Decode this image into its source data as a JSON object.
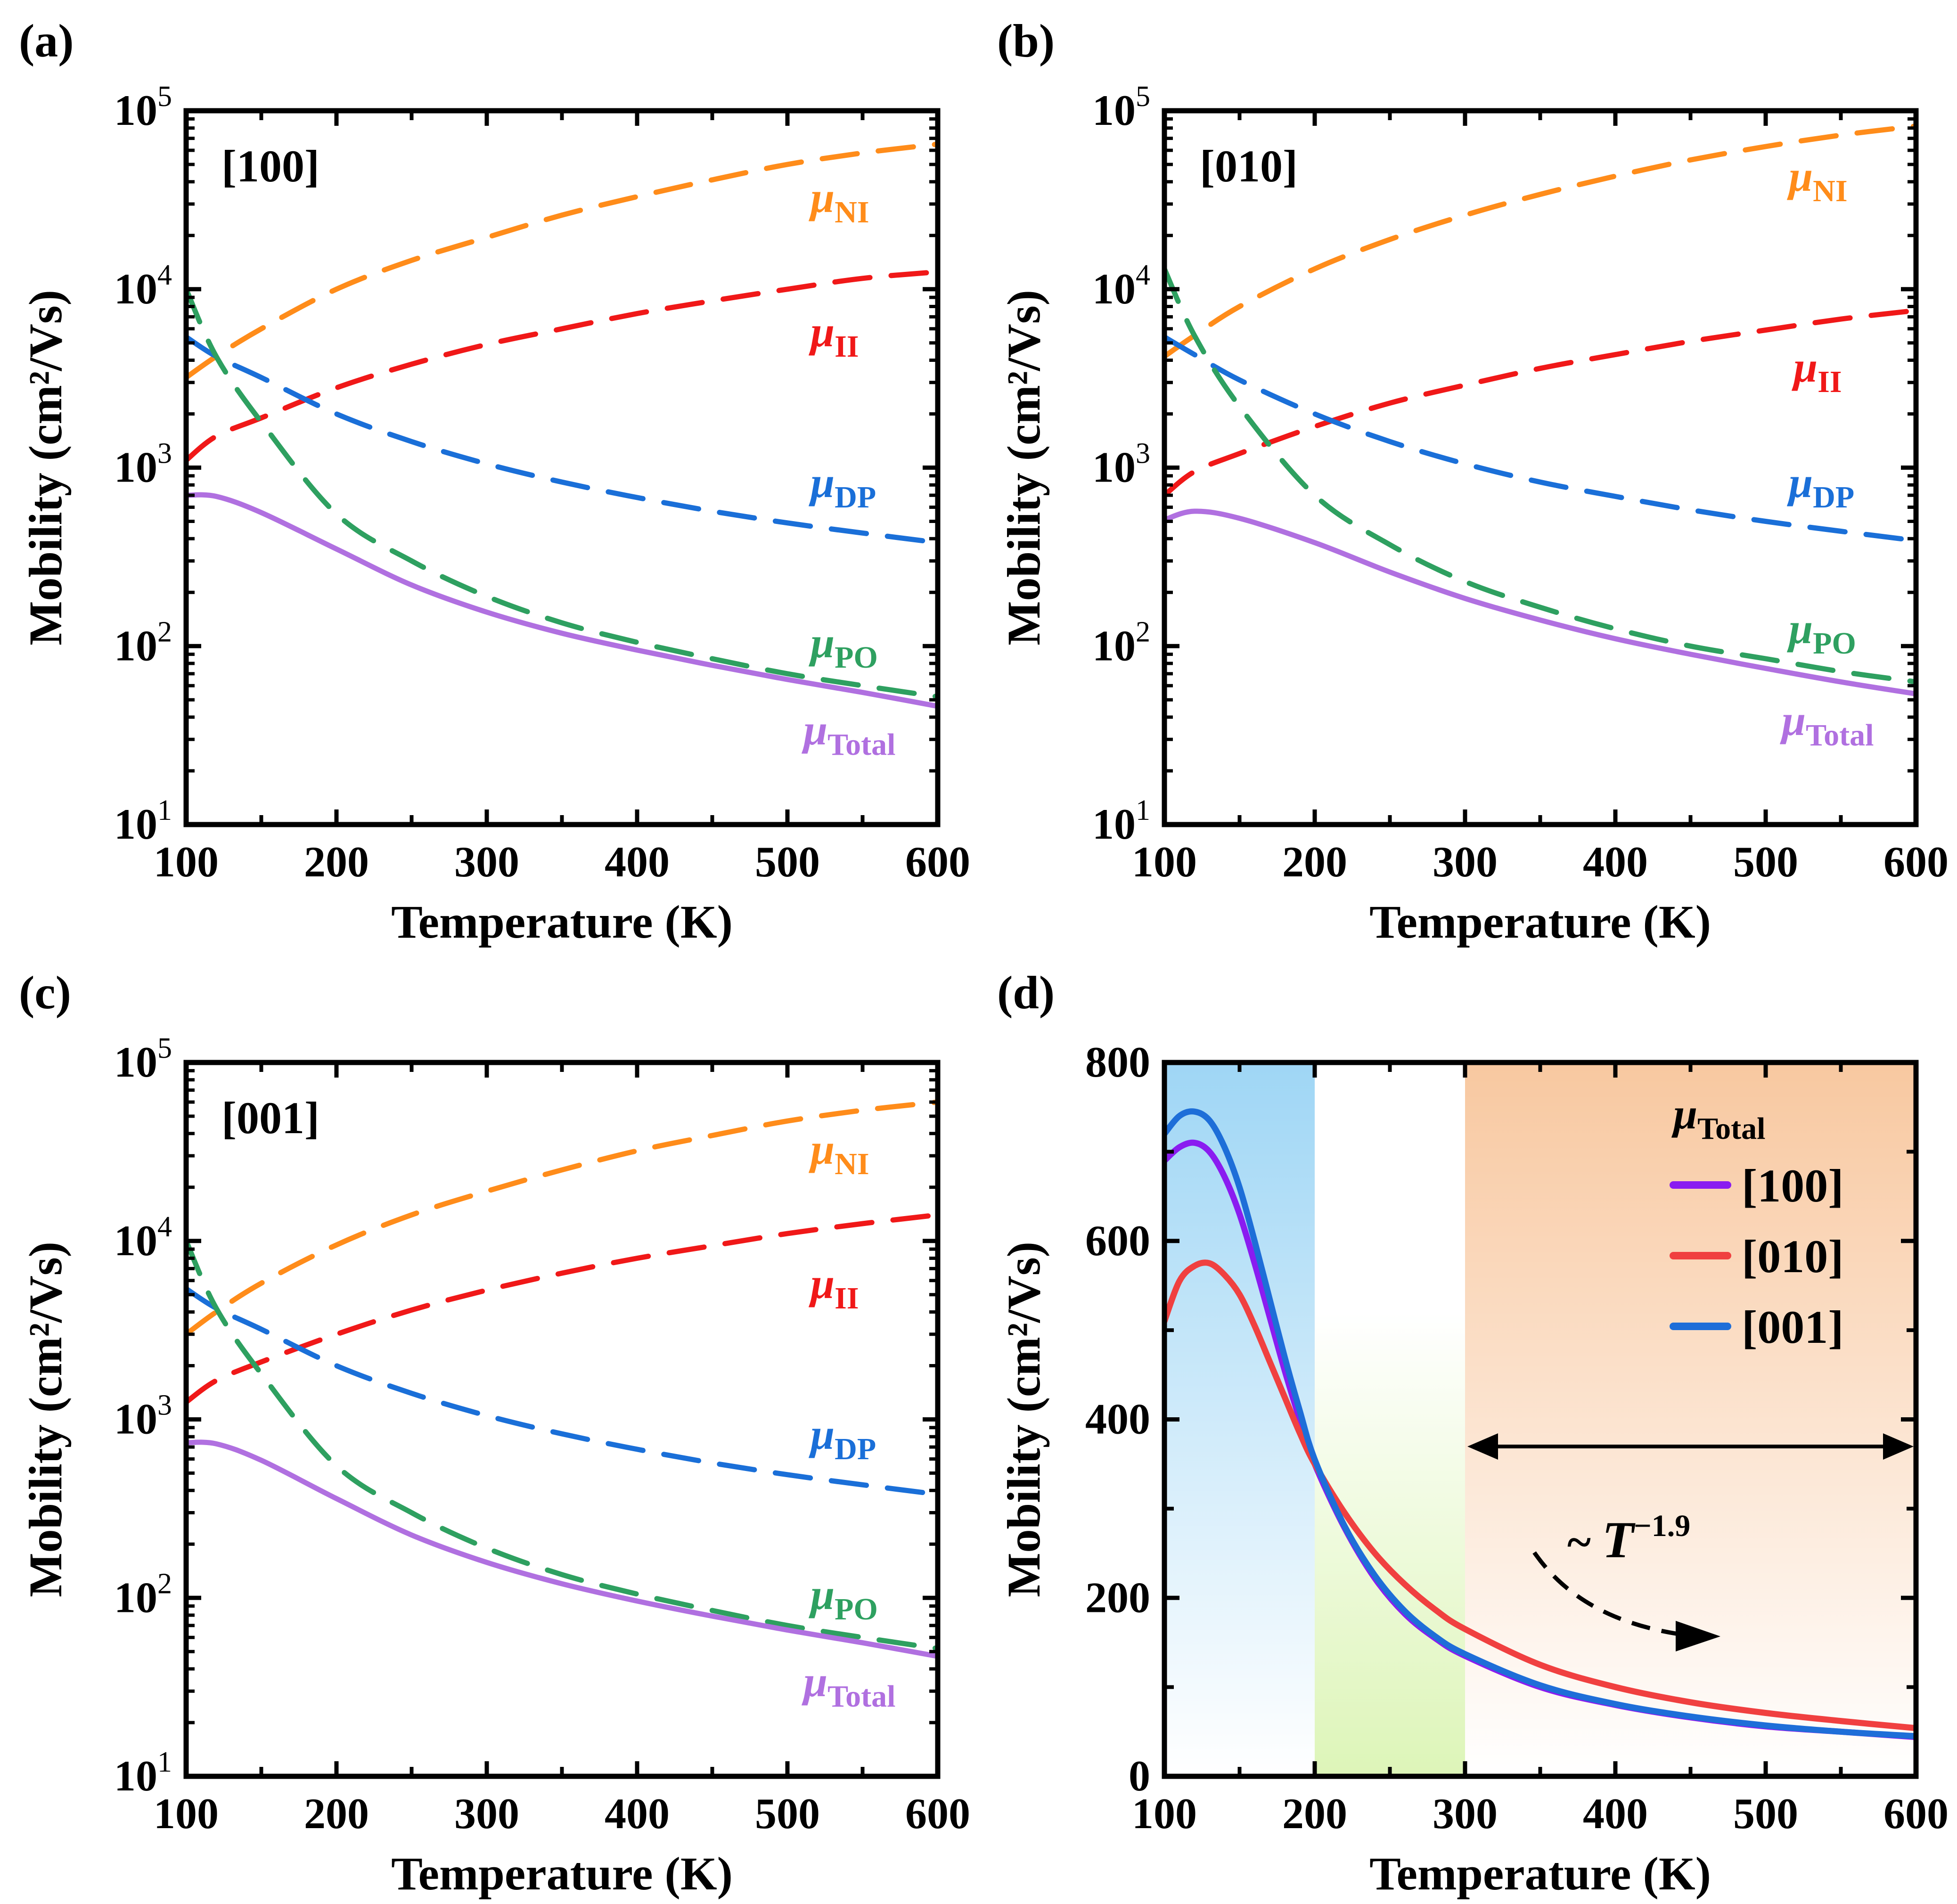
{
  "chart_data": [
    {
      "id": "a",
      "type": "line",
      "panel_label": "(a)",
      "direction": "[100]",
      "xlabel": "Temperature (K)",
      "ylabel": "Mobility (cm²/Vs)",
      "yscale": "log",
      "xlim": [
        100,
        600
      ],
      "ylim": [
        10,
        100000
      ],
      "xticks": [
        "100",
        "200",
        "300",
        "400",
        "500",
        "600"
      ],
      "yticks": [
        {
          "base": "10",
          "exp": "1",
          "v": 10
        },
        {
          "base": "10",
          "exp": "2",
          "v": 100
        },
        {
          "base": "10",
          "exp": "3",
          "v": 1000
        },
        {
          "base": "10",
          "exp": "4",
          "v": 10000
        },
        {
          "base": "10",
          "exp": "5",
          "v": 100000
        }
      ],
      "x": [
        100,
        120,
        150,
        200,
        250,
        300,
        350,
        400,
        450,
        500,
        550,
        600
      ],
      "series": [
        {
          "name": "μNI",
          "label_main": "μ",
          "label_sub": "NI",
          "color": "#FF8C1A",
          "dash": true,
          "values": [
            3200,
            4200,
            6000,
            10000,
            14500,
            19500,
            26000,
            33000,
            41000,
            50000,
            58000,
            65000
          ]
        },
        {
          "name": "μII",
          "label_main": "μ",
          "label_sub": "II",
          "color": "#F01818",
          "dash": true,
          "values": [
            1100,
            1500,
            1900,
            2800,
            3800,
            4900,
            6000,
            7300,
            8600,
            10000,
            11500,
            12500
          ]
        },
        {
          "name": "μDP",
          "label_main": "μ",
          "label_sub": "DP",
          "color": "#1A6FD8",
          "dash": true,
          "values": [
            5400,
            4200,
            3200,
            2000,
            1400,
            1050,
            830,
            680,
            570,
            490,
            430,
            380
          ]
        },
        {
          "name": "μPO",
          "label_main": "μ",
          "label_sub": "PO",
          "color": "#2EA060",
          "dash": true,
          "values": [
            10000,
            4200,
            1800,
            550,
            300,
            190,
            135,
            105,
            85,
            70,
            60,
            52
          ]
        },
        {
          "name": "μTotal",
          "label_main": "μ",
          "label_sub": "Total",
          "color": "#B070E0",
          "dash": false,
          "values": [
            700,
            690,
            560,
            350,
            220,
            155,
            118,
            95,
            78,
            65,
            55,
            46
          ]
        }
      ]
    },
    {
      "id": "b",
      "type": "line",
      "panel_label": "(b)",
      "direction": "[010]",
      "xlabel": "Temperature (K)",
      "ylabel": "Mobility (cm²/Vs)",
      "yscale": "log",
      "xlim": [
        100,
        600
      ],
      "ylim": [
        10,
        100000
      ],
      "xticks": [
        "100",
        "200",
        "300",
        "400",
        "500",
        "600"
      ],
      "yticks": [
        {
          "base": "10",
          "exp": "1",
          "v": 10
        },
        {
          "base": "10",
          "exp": "2",
          "v": 100
        },
        {
          "base": "10",
          "exp": "3",
          "v": 1000
        },
        {
          "base": "10",
          "exp": "4",
          "v": 10000
        },
        {
          "base": "10",
          "exp": "5",
          "v": 100000
        }
      ],
      "x": [
        100,
        120,
        150,
        200,
        250,
        300,
        350,
        400,
        450,
        500,
        550,
        600
      ],
      "series": [
        {
          "name": "μNI",
          "label_main": "μ",
          "label_sub": "NI",
          "color": "#FF8C1A",
          "dash": true,
          "values": [
            4200,
            5500,
            8000,
            13000,
            19000,
            26000,
            34000,
            43000,
            53000,
            63000,
            73000,
            82000
          ]
        },
        {
          "name": "μII",
          "label_main": "μ",
          "label_sub": "II",
          "color": "#F01818",
          "dash": true,
          "values": [
            700,
            950,
            1200,
            1700,
            2300,
            2900,
            3600,
            4300,
            5100,
            5900,
            6800,
            7600
          ]
        },
        {
          "name": "μDP",
          "label_main": "μ",
          "label_sub": "DP",
          "color": "#1A6FD8",
          "dash": true,
          "values": [
            5400,
            4300,
            3100,
            2000,
            1400,
            1050,
            830,
            690,
            580,
            500,
            440,
            390
          ]
        },
        {
          "name": "μPO",
          "label_main": "μ",
          "label_sub": "PO",
          "color": "#2EA060",
          "dash": true,
          "values": [
            13000,
            5500,
            2200,
            700,
            370,
            230,
            165,
            125,
            100,
            85,
            72,
            63
          ]
        },
        {
          "name": "μTotal",
          "label_main": "μ",
          "label_sub": "Total",
          "color": "#B070E0",
          "dash": false,
          "values": [
            510,
            570,
            520,
            380,
            260,
            185,
            140,
            110,
            90,
            75,
            63,
            54
          ]
        }
      ]
    },
    {
      "id": "c",
      "type": "line",
      "panel_label": "(c)",
      "direction": "[001]",
      "xlabel": "Temperature (K)",
      "ylabel": "Mobility (cm²/Vs)",
      "yscale": "log",
      "xlim": [
        100,
        600
      ],
      "ylim": [
        10,
        100000
      ],
      "xticks": [
        "100",
        "200",
        "300",
        "400",
        "500",
        "600"
      ],
      "yticks": [
        {
          "base": "10",
          "exp": "1",
          "v": 10
        },
        {
          "base": "10",
          "exp": "2",
          "v": 100
        },
        {
          "base": "10",
          "exp": "3",
          "v": 1000
        },
        {
          "base": "10",
          "exp": "4",
          "v": 10000
        },
        {
          "base": "10",
          "exp": "5",
          "v": 100000
        }
      ],
      "x": [
        100,
        120,
        150,
        200,
        250,
        300,
        350,
        400,
        450,
        500,
        550,
        600
      ],
      "series": [
        {
          "name": "μNI",
          "label_main": "μ",
          "label_sub": "NI",
          "color": "#FF8C1A",
          "dash": true,
          "values": [
            3000,
            4000,
            5800,
            9500,
            14000,
            19000,
            25000,
            32000,
            39000,
            47000,
            54000,
            60000
          ]
        },
        {
          "name": "μII",
          "label_main": "μ",
          "label_sub": "II",
          "color": "#F01818",
          "dash": true,
          "values": [
            1250,
            1650,
            2100,
            3000,
            4100,
            5300,
            6600,
            8000,
            9400,
            11000,
            12500,
            14000
          ]
        },
        {
          "name": "μDP",
          "label_main": "μ",
          "label_sub": "DP",
          "color": "#1A6FD8",
          "dash": true,
          "values": [
            5400,
            4200,
            3200,
            2000,
            1400,
            1050,
            830,
            680,
            570,
            490,
            430,
            380
          ]
        },
        {
          "name": "μPO",
          "label_main": "μ",
          "label_sub": "PO",
          "color": "#2EA060",
          "dash": true,
          "values": [
            10000,
            4200,
            1800,
            550,
            300,
            190,
            135,
            105,
            85,
            70,
            60,
            52
          ]
        },
        {
          "name": "μTotal",
          "label_main": "μ",
          "label_sub": "Total",
          "color": "#B070E0",
          "dash": false,
          "values": [
            740,
            730,
            590,
            360,
            225,
            158,
            120,
            96,
            79,
            66,
            56,
            47
          ]
        }
      ]
    },
    {
      "id": "d",
      "type": "line",
      "panel_label": "(d)",
      "xlabel": "Temperature (K)",
      "ylabel": "Mobility (cm²/Vs)",
      "yscale": "linear",
      "xlim": [
        100,
        600
      ],
      "ylim": [
        0,
        800
      ],
      "xticks": [
        "100",
        "200",
        "300",
        "400",
        "500",
        "600"
      ],
      "yticks": [
        {
          "label": "0",
          "v": 0
        },
        {
          "label": "200",
          "v": 200
        },
        {
          "label": "400",
          "v": 400
        },
        {
          "label": "600",
          "v": 600
        },
        {
          "label": "800",
          "v": 800
        }
      ],
      "legend_title_main": "μ",
      "legend_title_sub": "Total",
      "legend_position": "top-right",
      "annotation": {
        "text_prefix": "~ ",
        "text_main": "T",
        "text_exp": "−1.9"
      },
      "shaded_regions": [
        {
          "from": 100,
          "to": 200,
          "color": "#9FD6F5"
        },
        {
          "from": 200,
          "to": 300,
          "color": "#DDF5B8"
        },
        {
          "from": 300,
          "to": 600,
          "color": "#F8C8A0"
        }
      ],
      "x": [
        100,
        110,
        120,
        130,
        140,
        150,
        160,
        170,
        180,
        190,
        200,
        220,
        240,
        260,
        280,
        300,
        350,
        400,
        450,
        500,
        550,
        600
      ],
      "series": [
        {
          "name": "[100]",
          "color": "#8A1CF0",
          "values": [
            690,
            705,
            710,
            700,
            672,
            630,
            575,
            515,
            455,
            400,
            350,
            278,
            222,
            182,
            155,
            135,
            100,
            80,
            66,
            56,
            50,
            44
          ]
        },
        {
          "name": "[010]",
          "color": "#F04040",
          "values": [
            510,
            555,
            572,
            575,
            562,
            540,
            505,
            465,
            425,
            385,
            350,
            295,
            250,
            215,
            187,
            165,
            125,
            100,
            83,
            71,
            62,
            54
          ]
        },
        {
          "name": "[001]",
          "color": "#1E6ED8",
          "values": [
            720,
            740,
            745,
            735,
            705,
            660,
            600,
            535,
            470,
            410,
            355,
            280,
            225,
            185,
            157,
            137,
            102,
            81,
            67,
            57,
            50,
            45
          ]
        }
      ]
    }
  ]
}
